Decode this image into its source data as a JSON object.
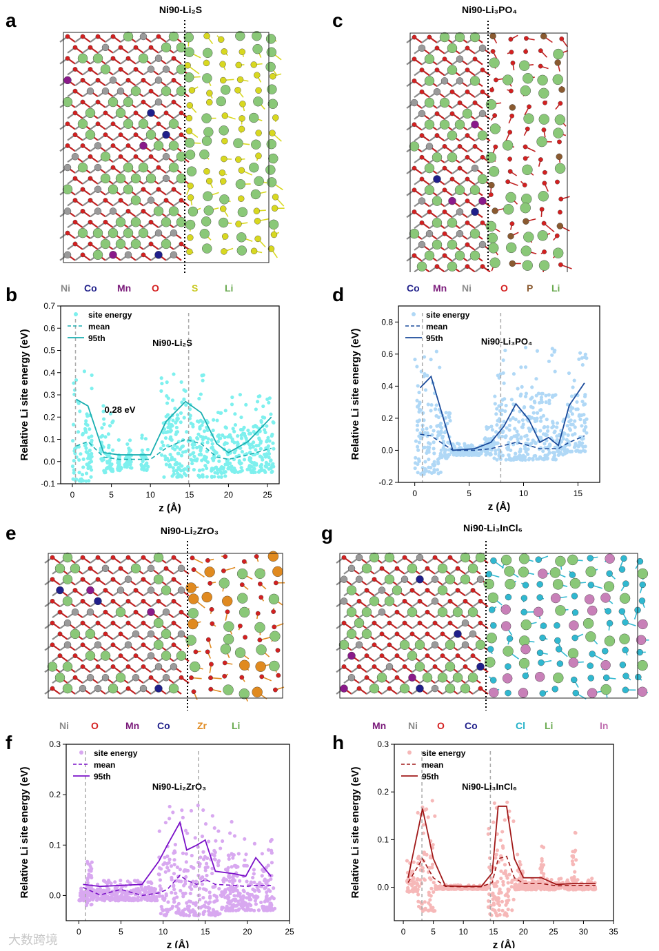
{
  "panels": {
    "a": {
      "letter": "a",
      "title": "Ni90-Li₂S",
      "legend": [
        {
          "label": "Ni",
          "color": "#8a8a8a"
        },
        {
          "label": "Co",
          "color": "#1f1f8a"
        },
        {
          "label": "Mn",
          "color": "#7a1a7a"
        },
        {
          "label": "O",
          "color": "#d42020"
        },
        {
          "label": "S",
          "color": "#c8c820"
        },
        {
          "label": "Li",
          "color": "#6aaa50"
        }
      ]
    },
    "c": {
      "letter": "c",
      "title": "Ni90-Li₃PO₄",
      "legend": [
        {
          "label": "Co",
          "color": "#1f1f8a"
        },
        {
          "label": "Mn",
          "color": "#7a1a7a"
        },
        {
          "label": "Ni",
          "color": "#8a8a8a"
        },
        {
          "label": "O",
          "color": "#d42020"
        },
        {
          "label": "P",
          "color": "#8a5a30"
        },
        {
          "label": "Li",
          "color": "#6aaa50"
        }
      ]
    },
    "e": {
      "letter": "e",
      "title": "Ni90-Li₂ZrO₃",
      "legend": [
        {
          "label": "Ni",
          "color": "#8a8a8a"
        },
        {
          "label": "O",
          "color": "#d42020"
        },
        {
          "label": "Mn",
          "color": "#7a1a7a"
        },
        {
          "label": "Co",
          "color": "#1f1f8a"
        },
        {
          "label": "Zr",
          "color": "#e08a20"
        },
        {
          "label": "Li",
          "color": "#6aaa50"
        }
      ]
    },
    "g": {
      "letter": "g",
      "title": "Ni90-Li₃InCl₆",
      "legend": [
        {
          "label": "Mn",
          "color": "#7a1a7a"
        },
        {
          "label": "Ni",
          "color": "#8a8a8a"
        },
        {
          "label": "O",
          "color": "#d42020"
        },
        {
          "label": "Co",
          "color": "#1f1f8a"
        },
        {
          "label": "Cl",
          "color": "#20b0c8"
        },
        {
          "label": "Li",
          "color": "#6aaa50"
        },
        {
          "label": "In",
          "color": "#c070b0"
        }
      ]
    },
    "b": {
      "letter": "b"
    },
    "d": {
      "letter": "d"
    },
    "f": {
      "letter": "f"
    },
    "h": {
      "letter": "h"
    }
  },
  "colors": {
    "Ni": "#9a9a9a",
    "Co": "#1f1f8a",
    "Mn": "#8a1a8a",
    "O": "#d42020",
    "S": "#d8d820",
    "Li": "#8ac878",
    "P": "#8a5a30",
    "Zr": "#e08a20",
    "Cl": "#30b8d0",
    "In": "#c880b8"
  },
  "chart_data": [
    {
      "id": "b",
      "type": "scatter",
      "title": "Ni90-Li₂S",
      "xlabel": "z (Å)",
      "ylabel": "Relative Li site energy (eV)",
      "xlim": [
        -1.5,
        26.5
      ],
      "ylim": [
        -0.1,
        0.7
      ],
      "xticks": [
        0,
        5,
        10,
        15,
        20,
        25
      ],
      "yticks": [
        -0.1,
        0.0,
        0.1,
        0.2,
        0.3,
        0.4,
        0.5,
        0.6,
        0.7
      ],
      "xtick_labels": [
        "0",
        "5",
        "10",
        "15",
        "20",
        "25"
      ],
      "ytick_labels": [
        "-0.1",
        "0.0",
        "0.1",
        "0.2",
        "0.3",
        "0.4",
        "0.5",
        "0.6",
        "0.7"
      ],
      "scatter_color": "#7ef0ee",
      "line_color": "#1aaeb0",
      "legend": [
        "site energy",
        "mean",
        "95th"
      ],
      "vlines": [
        0.4,
        14.9
      ],
      "annotation": "0.28 eV",
      "p95": {
        "x": [
          0.5,
          2.0,
          4.0,
          6.0,
          8.0,
          10.0,
          12.0,
          14.5,
          16.5,
          18.5,
          20.0,
          22.5,
          25.5
        ],
        "y": [
          0.28,
          0.25,
          0.04,
          0.03,
          0.03,
          0.03,
          0.18,
          0.27,
          0.22,
          0.08,
          0.04,
          0.09,
          0.2
        ]
      },
      "mean": {
        "x": [
          0.5,
          2.0,
          4.0,
          6.0,
          8.0,
          10.0,
          12.0,
          14.5,
          16.5,
          18.5,
          20.0,
          22.5,
          25.5
        ],
        "y": [
          0.07,
          0.09,
          0.02,
          0.01,
          0.01,
          0.01,
          0.06,
          0.1,
          0.08,
          0.02,
          0.01,
          0.03,
          0.06
        ]
      },
      "bands": [
        {
          "x0": 0.0,
          "x1": 2.5,
          "lo": -0.09,
          "hi": 0.41
        },
        {
          "x0": 3.6,
          "x1": 5.3,
          "lo": -0.05,
          "hi": 0.35
        },
        {
          "x0": 5.8,
          "x1": 6.3,
          "lo": -0.04,
          "hi": 0.1
        },
        {
          "x0": 6.7,
          "x1": 7.6,
          "lo": -0.03,
          "hi": 0.12
        },
        {
          "x0": 8.8,
          "x1": 9.7,
          "lo": -0.04,
          "hi": 0.12
        },
        {
          "x0": 11.3,
          "x1": 17.6,
          "lo": -0.07,
          "hi": 0.41
        },
        {
          "x0": 17.8,
          "x1": 19.6,
          "lo": -0.07,
          "hi": 0.27
        },
        {
          "x0": 19.6,
          "x1": 25.8,
          "lo": -0.05,
          "hi": 0.31
        }
      ]
    },
    {
      "id": "d",
      "type": "scatter",
      "title": "Ni90-Li₃PO₄",
      "xlabel": "z (Å)",
      "ylabel": "Relative Li site energy (eV)",
      "xlim": [
        -1.5,
        17.0
      ],
      "ylim": [
        -0.2,
        0.9
      ],
      "xticks": [
        0,
        5,
        10,
        15
      ],
      "yticks": [
        -0.2,
        0.0,
        0.2,
        0.4,
        0.6,
        0.8
      ],
      "xtick_labels": [
        "0",
        "5",
        "10",
        "15"
      ],
      "ytick_labels": [
        "-0.2",
        "0.0",
        "0.2",
        "0.4",
        "0.6",
        "0.8"
      ],
      "scatter_color": "#b0d8f6",
      "line_color": "#1a4a9a",
      "legend": [
        "site energy",
        "mean",
        "95th"
      ],
      "vlines": [
        0.7,
        7.9
      ],
      "p95": {
        "x": [
          0.5,
          1.5,
          3.5,
          5.5,
          7.0,
          8.2,
          9.3,
          10.5,
          11.5,
          12.3,
          13.2,
          14.2,
          15.6
        ],
        "y": [
          0.39,
          0.46,
          0.0,
          0.01,
          0.05,
          0.15,
          0.29,
          0.19,
          0.05,
          0.08,
          0.03,
          0.28,
          0.42
        ]
      },
      "mean": {
        "x": [
          0.5,
          1.5,
          3.5,
          5.5,
          7.0,
          8.2,
          9.3,
          10.5,
          11.5,
          12.3,
          13.2,
          14.2,
          15.6
        ],
        "y": [
          0.1,
          0.09,
          0.0,
          0.0,
          0.01,
          0.03,
          0.05,
          0.03,
          0.01,
          0.01,
          0.01,
          0.05,
          0.09
        ]
      },
      "bands": [
        {
          "x0": 0.0,
          "x1": 2.4,
          "lo": -0.15,
          "hi": 0.65
        },
        {
          "x0": 2.4,
          "x1": 3.4,
          "lo": -0.05,
          "hi": 0.25
        },
        {
          "x0": 3.5,
          "x1": 6.2,
          "lo": -0.03,
          "hi": 0.05
        },
        {
          "x0": 6.3,
          "x1": 7.3,
          "lo": -0.03,
          "hi": 0.15
        },
        {
          "x0": 7.3,
          "x1": 13.0,
          "lo": -0.06,
          "hi": 0.65
        },
        {
          "x0": 13.0,
          "x1": 14.0,
          "lo": -0.03,
          "hi": 0.2
        },
        {
          "x0": 14.0,
          "x1": 15.8,
          "lo": -0.01,
          "hi": 0.63
        }
      ]
    },
    {
      "id": "f",
      "type": "scatter",
      "title": "Ni90-Li₂ZrO₃",
      "xlabel": "z (Å)",
      "ylabel": "Relative Li site energy (eV)",
      "xlim": [
        -1.5,
        25.0
      ],
      "ylim": [
        -0.05,
        0.3
      ],
      "xticks": [
        0,
        5,
        10,
        15,
        20,
        25
      ],
      "yticks": [
        0.0,
        0.1,
        0.2,
        0.3
      ],
      "xtick_labels": [
        "0",
        "5",
        "10",
        "15",
        "20",
        "25"
      ],
      "ytick_labels": [
        "0.0",
        "0.1",
        "0.2",
        "0.3"
      ],
      "scatter_color": "#d8a8f0",
      "line_color": "#7a10c8",
      "legend": [
        "site energy",
        "mean",
        "95th"
      ],
      "vlines": [
        0.8,
        14.2
      ],
      "p95": {
        "x": [
          0.5,
          2.5,
          5.0,
          7.5,
          9.5,
          10.5,
          12.0,
          12.8,
          14.0,
          15.0,
          16.2,
          18.5,
          19.8,
          21.0,
          22.8
        ],
        "y": [
          0.022,
          0.018,
          0.02,
          0.022,
          0.068,
          0.1,
          0.145,
          0.09,
          0.1,
          0.11,
          0.048,
          0.043,
          0.038,
          0.075,
          0.038
        ]
      },
      "mean": {
        "x": [
          0.5,
          2.5,
          5.0,
          7.5,
          9.5,
          10.5,
          12.0,
          12.8,
          14.0,
          15.0,
          16.2,
          18.5,
          19.8,
          21.0,
          22.8
        ],
        "y": [
          0.016,
          0.001,
          0.012,
          0.0,
          0.005,
          0.012,
          0.04,
          0.03,
          0.022,
          0.032,
          0.022,
          0.02,
          0.018,
          0.02,
          0.02
        ]
      },
      "bands": [
        {
          "x0": 0.0,
          "x1": 9.3,
          "lo": -0.01,
          "hi": 0.03
        },
        {
          "x0": 0.9,
          "x1": 1.6,
          "lo": -0.02,
          "hi": 0.12
        },
        {
          "x0": 9.4,
          "x1": 16.8,
          "lo": -0.04,
          "hi": 0.18
        },
        {
          "x0": 16.8,
          "x1": 23.3,
          "lo": -0.03,
          "hi": 0.12
        },
        {
          "x0": 17.7,
          "x1": 18.5,
          "lo": -0.03,
          "hi": 0.17
        }
      ]
    },
    {
      "id": "h",
      "type": "scatter",
      "title": "Ni90-Li₃InCl₆",
      "xlabel": "z (Å)",
      "ylabel": "Relative Li site energy (eV)",
      "xlim": [
        -1.5,
        35.0
      ],
      "ylim": [
        -0.07,
        0.3
      ],
      "xticks": [
        0,
        5,
        10,
        15,
        20,
        25,
        30,
        35
      ],
      "yticks": [
        0.0,
        0.1,
        0.2,
        0.3
      ],
      "xtick_labels": [
        "0",
        "5",
        "10",
        "15",
        "20",
        "25",
        "30",
        "35"
      ],
      "ytick_labels": [
        "0.0",
        "0.1",
        "0.2",
        "0.3"
      ],
      "scatter_color": "#f6b8b8",
      "line_color": "#a01818",
      "legend": [
        "site energy",
        "mean",
        "95th"
      ],
      "vlines": [
        3.1,
        14.5
      ],
      "p95": {
        "x": [
          0.8,
          3.2,
          5.0,
          7.0,
          10.0,
          13.0,
          14.8,
          15.8,
          17.2,
          18.5,
          20.0,
          23.0,
          25.5,
          28.5,
          32.0
        ],
        "y": [
          0.02,
          0.165,
          0.06,
          0.003,
          0.002,
          0.002,
          0.03,
          0.17,
          0.17,
          0.06,
          0.02,
          0.02,
          0.006,
          0.008,
          0.008
        ]
      },
      "mean": {
        "x": [
          0.8,
          3.2,
          5.0,
          7.0,
          10.0,
          13.0,
          14.8,
          15.8,
          17.2,
          18.5,
          20.0,
          23.0,
          25.5,
          28.5,
          32.0
        ],
        "y": [
          0.01,
          0.06,
          0.02,
          0.002,
          0.001,
          0.001,
          0.01,
          0.06,
          0.065,
          0.02,
          0.008,
          0.008,
          0.003,
          0.004,
          0.004
        ]
      },
      "bands": [
        {
          "x0": 0.5,
          "x1": 2.4,
          "lo": -0.01,
          "hi": 0.06
        },
        {
          "x0": 2.4,
          "x1": 5.3,
          "lo": -0.05,
          "hi": 0.185
        },
        {
          "x0": 5.3,
          "x1": 14.0,
          "lo": -0.004,
          "hi": 0.005
        },
        {
          "x0": 14.1,
          "x1": 18.4,
          "lo": -0.06,
          "hi": 0.18
        },
        {
          "x0": 18.4,
          "x1": 32.0,
          "lo": -0.005,
          "hi": 0.02
        },
        {
          "x0": 22.8,
          "x1": 23.4,
          "lo": 0.0,
          "hi": 0.1
        },
        {
          "x0": 28.1,
          "x1": 28.8,
          "lo": 0.0,
          "hi": 0.13
        },
        {
          "x0": 19.0,
          "x1": 20.0,
          "lo": 0.0,
          "hi": 0.07
        }
      ]
    }
  ],
  "watermark": "大数跨境"
}
